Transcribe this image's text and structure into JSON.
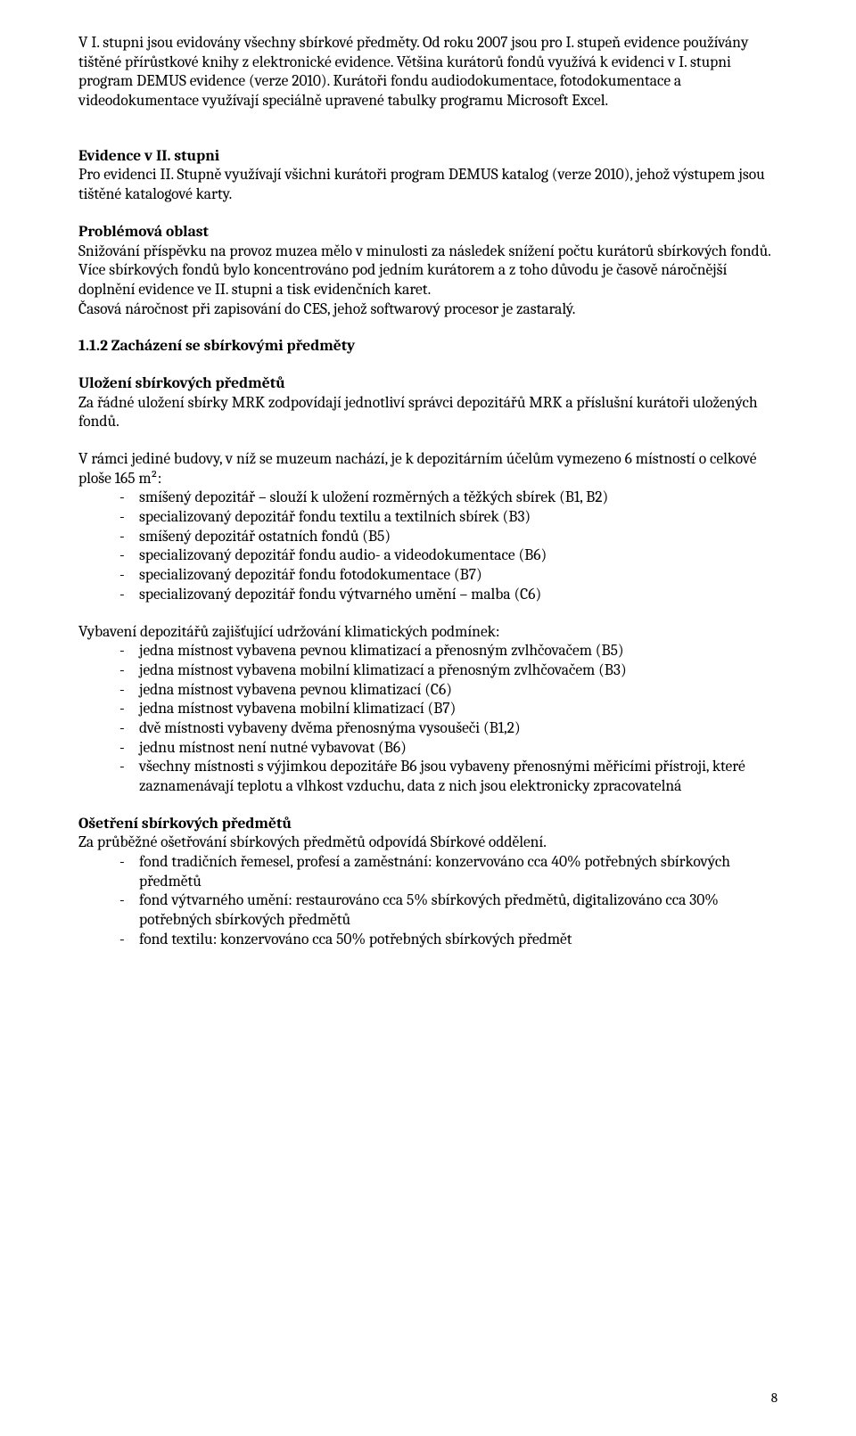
{
  "p1": "V I. stupni jsou evidovány všechny sbírkové předměty. Od roku 2007 jsou pro I. stupeň evidence používány tištěné přírůstkové knihy z elektronické evidence. Většina kurátorů fondů využívá k evidenci v I. stupni program DEMUS evidence (verze 2010). Kurátoři fondu audiodokumentace, fotodokumentace a videodokumentace využívají speciálně upravené tabulky programu Microsoft Excel.",
  "h_evidence": "Evidence v II. stupni",
  "p2": "Pro evidenci II. Stupně využívají všichni kurátoři program DEMUS katalog (verze 2010), jehož výstupem jsou tištěné katalogové karty.",
  "h_problem": "Problémová oblast",
  "p3": "Snižování příspěvku na provoz muzea mělo v minulosti za následek snížení počtu kurátorů sbírkových fondů. Více sbírkových fondů bylo koncentrováno pod jedním kurátorem a z toho důvodu je časově náročnější doplnění evidence ve II. stupni a tisk evidenčních karet.",
  "p4": "Časová náročnost při zapisování do CES, jehož softwarový procesor je zastaralý.",
  "h_112": "1.1.2 Zacházení se sbírkovými předměty",
  "h_ulozeni": "Uložení sbírkových předmětů",
  "p5": "Za řádné uložení sbírky MRK zodpovídají jednotliví správci depozitářů MRK a příslušní kurátoři uložených fondů.",
  "p6": "V rámci jediné budovy, v níž se muzeum nachází, je k depozitárním účelům vymezeno 6 místností o celkové ploše 165 m²:",
  "list1": [
    "smíšený depozitář – slouží k uložení rozměrných a těžkých sbírek (B1, B2)",
    "specializovaný depozitář fondu textilu a textilních sbírek (B3)",
    "smíšený depozitář ostatních fondů (B5)",
    "specializovaný depozitář fondu audio- a videodokumentace (B6)",
    "specializovaný depozitář fondu fotodokumentace (B7)",
    "specializovaný depozitář fondu výtvarného umění – malba (C6)"
  ],
  "p7": "Vybavení depozitářů zajišťující udržování klimatických podmínek:",
  "list2": [
    "jedna místnost vybavena pevnou klimatizací a přenosným zvlhčovačem (B5)",
    "jedna místnost vybavena mobilní klimatizací a přenosným zvlhčovačem (B3)",
    "jedna místnost vybavena pevnou klimatizací (C6)",
    "jedna místnost vybavena mobilní klimatizací (B7)",
    "dvě místnosti vybaveny dvěma přenosnýma vysoušeči (B1,2)",
    "jednu místnost není nutné vybavovat (B6)",
    "všechny místnosti s výjimkou depozitáře B6 jsou vybaveny přenosnými měřicími přístroji, které zaznamenávají teplotu a vlhkost vzduchu, data z nich jsou elektronicky zpracovatelná"
  ],
  "h_osetreni": "Ošetření sbírkových předmětů",
  "p8": "Za průběžné ošetřování sbírkových předmětů odpovídá Sbírkové oddělení.",
  "list3": [
    "fond tradičních řemesel, profesí a zaměstnání: konzervováno cca 40% potřebných sbírkových předmětů",
    "fond výtvarného umění: restaurováno cca 5% sbírkových předmětů, digitalizováno cca 30% potřebných sbírkových předmětů",
    "fond textilu: konzervováno cca 50% potřebných sbírkových předmět"
  ],
  "page_number": "8"
}
